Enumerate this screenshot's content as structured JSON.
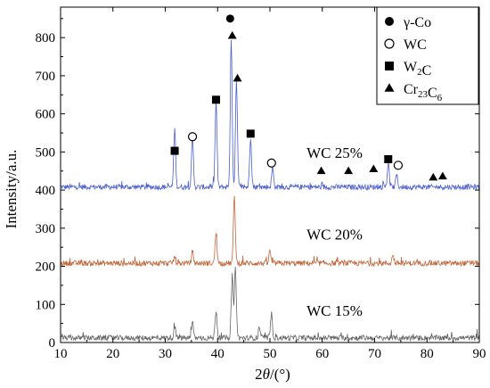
{
  "chart_data": {
    "type": "line",
    "xlabel": "2θ/(°)",
    "ylabel": "Intensity/a.u.",
    "xlim": [
      10,
      90
    ],
    "ylim": [
      0,
      880
    ],
    "x_ticks": [
      10,
      20,
      30,
      40,
      50,
      60,
      70,
      80,
      90
    ],
    "y_ticks": [
      0,
      100,
      200,
      300,
      400,
      500,
      600,
      700,
      800
    ],
    "grid": false,
    "legend_position": "top-right",
    "legend": [
      {
        "marker": "filled-circle",
        "label": "γ-Co"
      },
      {
        "marker": "open-circle",
        "label": "WC"
      },
      {
        "marker": "filled-square",
        "label": "W₂C"
      },
      {
        "marker": "filled-triangle",
        "label": "Cr₂₃C₆"
      }
    ],
    "series": [
      {
        "name": "WC 25%",
        "color": "#4a5fd0",
        "baseline": 408,
        "label_at": [
          57,
          485
        ],
        "peaks": [
          [
            31.8,
            560
          ],
          [
            35.2,
            540
          ],
          [
            39.7,
            630
          ],
          [
            42.6,
            790
          ],
          [
            43.6,
            690
          ],
          [
            46.3,
            540
          ],
          [
            50.5,
            460
          ],
          [
            72.6,
            470
          ],
          [
            74.2,
            440
          ]
        ]
      },
      {
        "name": "WC 20%",
        "color": "#c0663a",
        "baseline": 208,
        "label_at": [
          57,
          270
        ],
        "peaks": [
          [
            31.8,
            225
          ],
          [
            35.2,
            240
          ],
          [
            39.7,
            290
          ],
          [
            43.2,
            385
          ],
          [
            50.0,
            240
          ],
          [
            73.5,
            230
          ]
        ]
      },
      {
        "name": "WC 15%",
        "color": "#666666",
        "baseline": 12,
        "label_at": [
          57,
          70
        ],
        "peaks": [
          [
            31.8,
            40
          ],
          [
            35.2,
            55
          ],
          [
            39.7,
            85
          ],
          [
            42.8,
            175
          ],
          [
            43.4,
            195
          ],
          [
            48.0,
            40
          ],
          [
            50.3,
            75
          ]
        ]
      }
    ],
    "annotations": [
      {
        "marker": "filled-circle",
        "x": 42.4,
        "y": 850
      },
      {
        "marker": "filled-triangle",
        "x": 42.8,
        "y": 805
      },
      {
        "marker": "filled-triangle",
        "x": 43.8,
        "y": 693
      },
      {
        "marker": "filled-square",
        "x": 39.7,
        "y": 637
      },
      {
        "marker": "filled-square",
        "x": 46.3,
        "y": 548
      },
      {
        "marker": "filled-square",
        "x": 31.8,
        "y": 503
      },
      {
        "marker": "open-circle",
        "x": 35.2,
        "y": 540
      },
      {
        "marker": "open-circle",
        "x": 50.3,
        "y": 471
      },
      {
        "marker": "filled-triangle",
        "x": 59.8,
        "y": 450
      },
      {
        "marker": "filled-triangle",
        "x": 65.0,
        "y": 450
      },
      {
        "marker": "filled-triangle",
        "x": 69.8,
        "y": 455
      },
      {
        "marker": "filled-square",
        "x": 72.6,
        "y": 481
      },
      {
        "marker": "open-circle",
        "x": 74.5,
        "y": 465
      },
      {
        "marker": "filled-triangle",
        "x": 81.2,
        "y": 433
      },
      {
        "marker": "filled-triangle",
        "x": 83.0,
        "y": 436
      }
    ]
  }
}
